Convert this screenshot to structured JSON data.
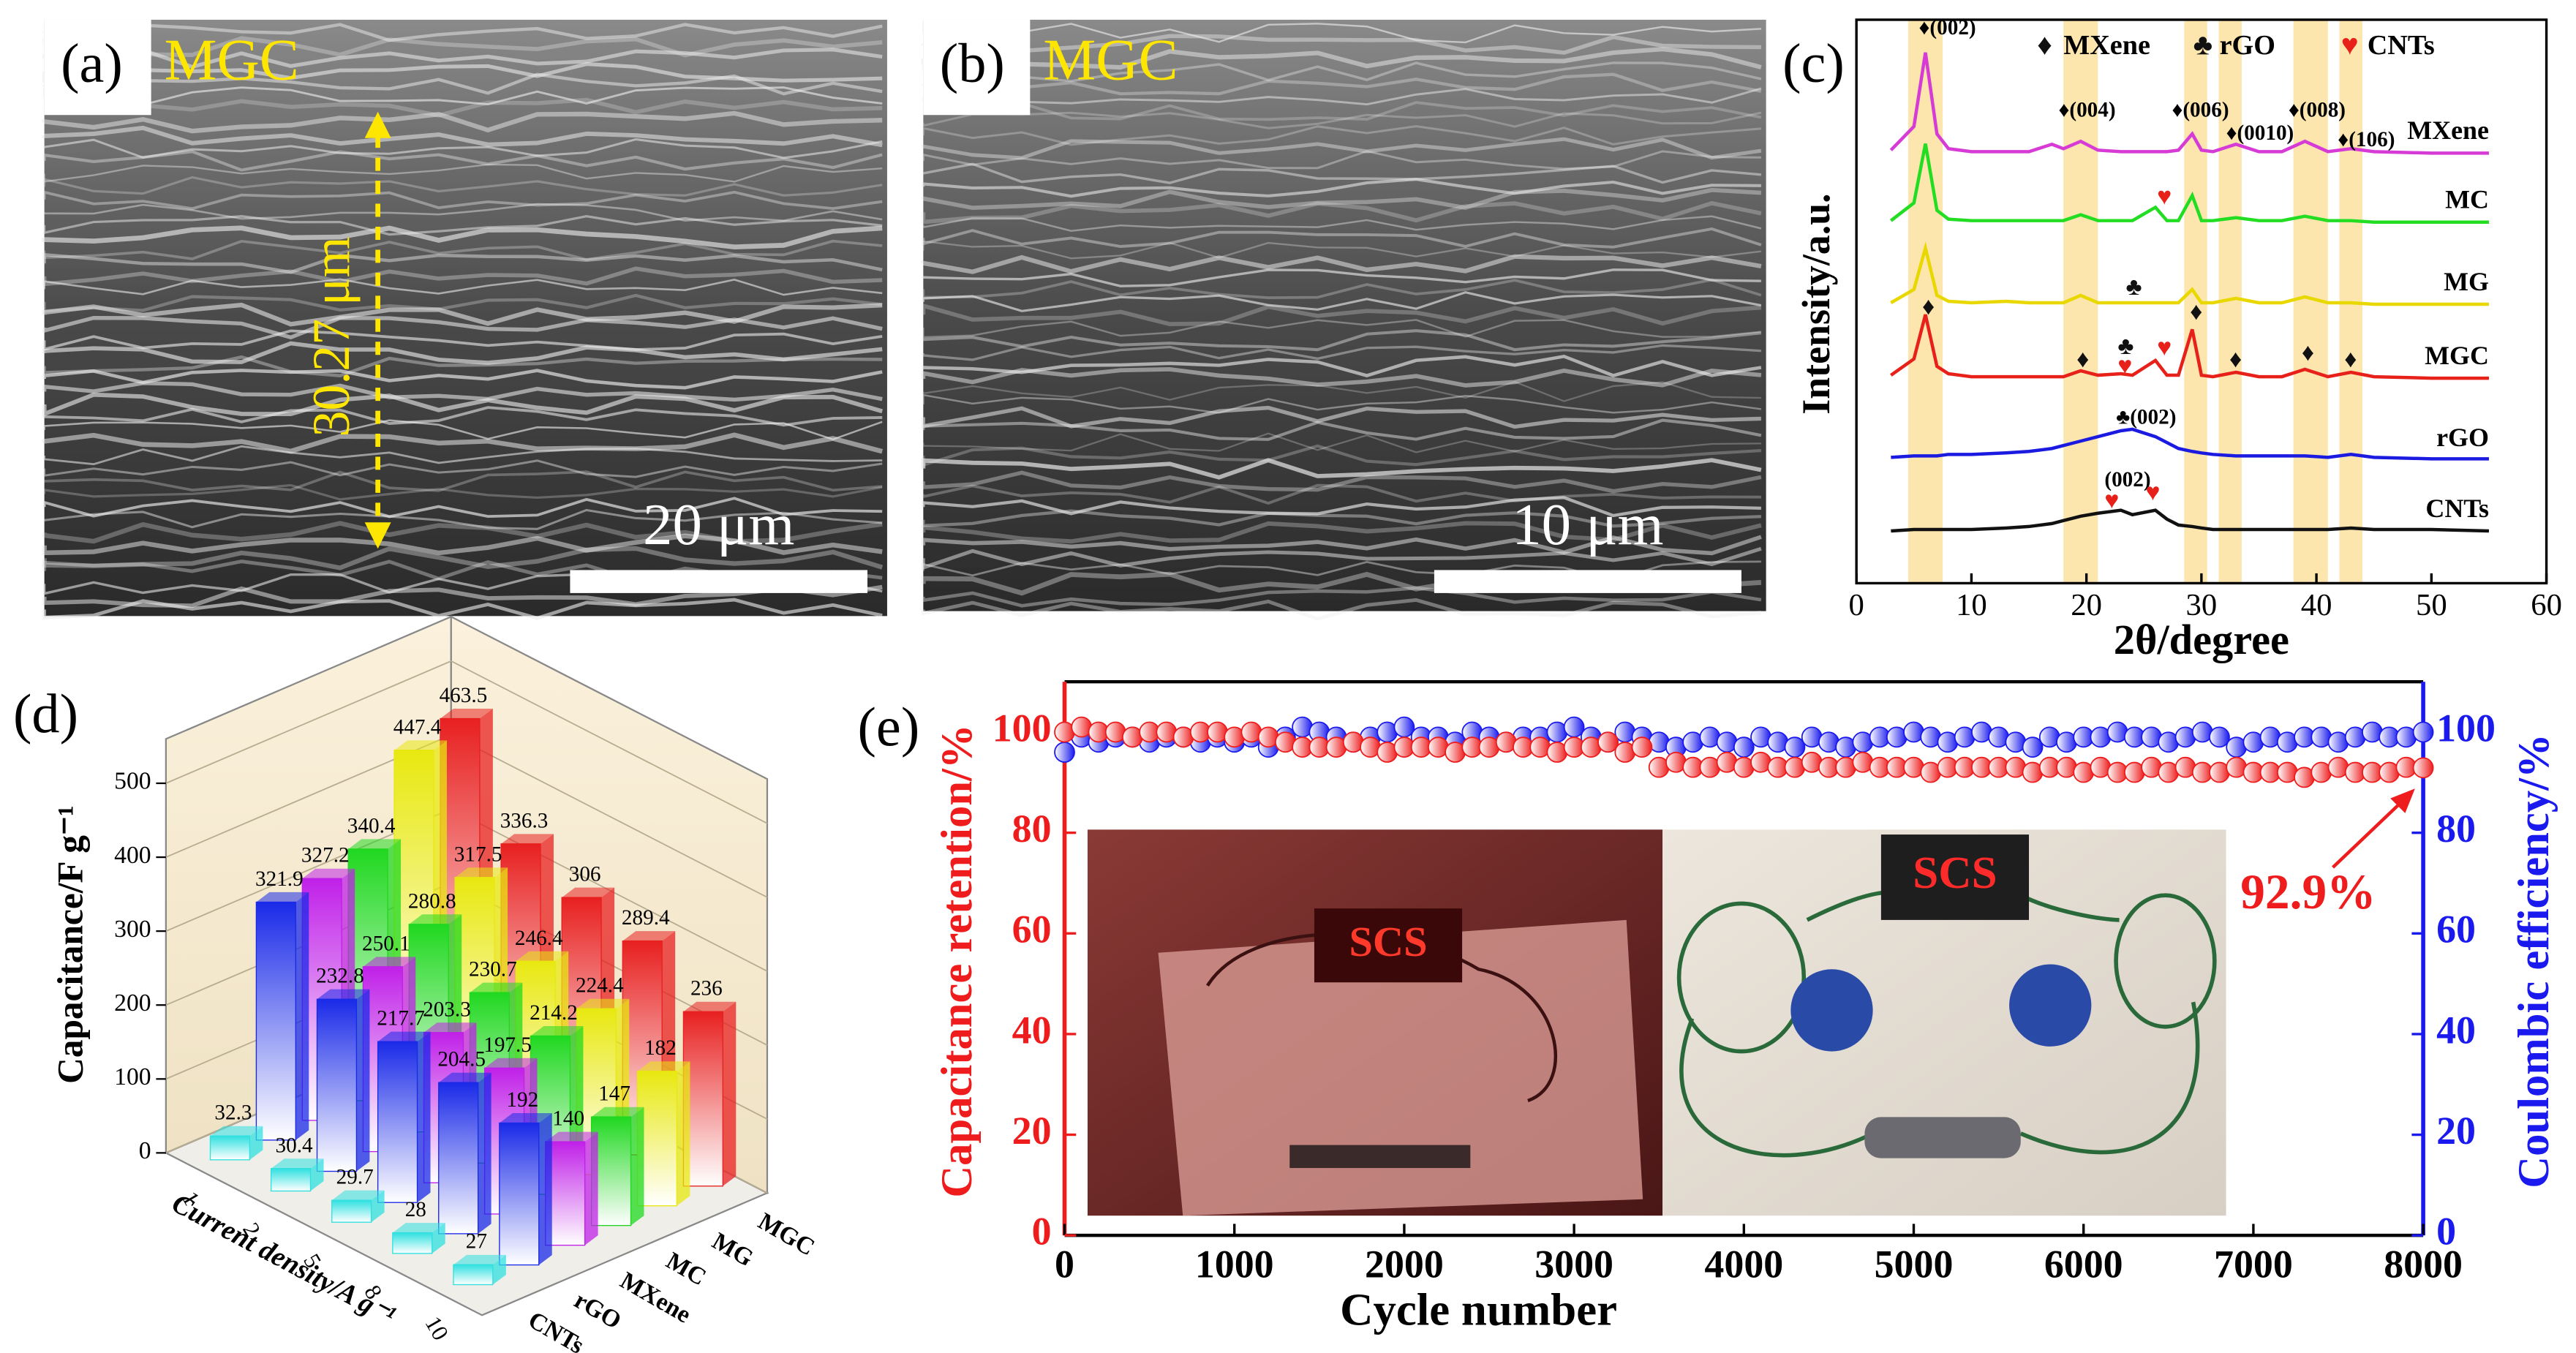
{
  "chart_data": [
    {
      "type": "image",
      "label": "(a)",
      "title": "MGC",
      "annotation": "30.27 μm",
      "scale_bar": "20 μm"
    },
    {
      "type": "image",
      "label": "(b)",
      "title": "MGC",
      "scale_bar": "10 μm"
    },
    {
      "type": "line",
      "label": "(c)",
      "xlabel": "2θ/degree",
      "ylabel": "Intensity/a.u.",
      "x": [
        3,
        5,
        6,
        7,
        8,
        10,
        13,
        15,
        17,
        18,
        19.5,
        21,
        23,
        24,
        26,
        27,
        28,
        29.2,
        30,
        31,
        33,
        35,
        37,
        39,
        41,
        43,
        45,
        50,
        55
      ],
      "xlim": [
        0,
        60
      ],
      "xticks": [
        0,
        10,
        20,
        30,
        40,
        50,
        60
      ],
      "bands": [
        [
          4.5,
          7.5
        ],
        [
          18,
          21
        ],
        [
          28.5,
          30.5
        ],
        [
          31.5,
          33.5
        ],
        [
          38,
          41
        ],
        [
          42,
          44
        ]
      ],
      "series": [
        {
          "name": "MXene",
          "color": "#d63bd6",
          "values": [
            4,
            20,
            70,
            15,
            5,
            3,
            3,
            3,
            8,
            5,
            10,
            4,
            3,
            3,
            3,
            3,
            4,
            15,
            4,
            3,
            8,
            3,
            3,
            10,
            3,
            5,
            3,
            2,
            2
          ]
        },
        {
          "name": "MC",
          "color": "#22dd22",
          "values": [
            3,
            15,
            55,
            10,
            4,
            3,
            3,
            3,
            3,
            3,
            7,
            3,
            3,
            3,
            12,
            3,
            3,
            20,
            3,
            3,
            5,
            3,
            3,
            6,
            3,
            3,
            2,
            2,
            2
          ]
        },
        {
          "name": "MG",
          "color": "#e8d800",
          "values": [
            3,
            12,
            40,
            8,
            4,
            3,
            4,
            3,
            3,
            3,
            8,
            3,
            3,
            3,
            3,
            3,
            3,
            12,
            3,
            3,
            6,
            3,
            3,
            7,
            3,
            3,
            2,
            2,
            2
          ]
        },
        {
          "name": "MGC",
          "color": "#e8201a",
          "values": [
            4,
            15,
            45,
            10,
            5,
            3,
            3,
            3,
            3,
            3,
            7,
            4,
            5,
            4,
            14,
            4,
            4,
            35,
            4,
            3,
            6,
            3,
            3,
            8,
            3,
            6,
            3,
            2,
            2
          ]
        },
        {
          "name": "rGO",
          "color": "#1a1ae0",
          "values": [
            4,
            5,
            5,
            5,
            6,
            6,
            7,
            8,
            10,
            12,
            15,
            18,
            22,
            23,
            18,
            14,
            10,
            8,
            7,
            6,
            5,
            5,
            5,
            5,
            4,
            6,
            4,
            3,
            3
          ]
        },
        {
          "name": "CNTs",
          "color": "#111111",
          "values": [
            2,
            3,
            3,
            3,
            3,
            3,
            4,
            5,
            7,
            9,
            12,
            14,
            16,
            13,
            16,
            10,
            6,
            5,
            4,
            3,
            3,
            3,
            3,
            3,
            3,
            4,
            3,
            3,
            2
          ]
        }
      ],
      "marker_legend": [
        {
          "symbol": "♦",
          "name": "MXene",
          "color": "#111111"
        },
        {
          "symbol": "♣",
          "name": "rGO",
          "color": "#111111"
        },
        {
          "symbol": "♥",
          "name": "CNTs",
          "color": "#e8201a"
        }
      ],
      "annotations": [
        "♦(002)",
        "♦(004)",
        "♦(006)",
        "♦(0010)",
        "♦(008)",
        "♦(106)",
        "♣(002)",
        "(002)"
      ],
      "markers": [
        "♥",
        "♣",
        "♦",
        "♦",
        "♣",
        "♥",
        "♥",
        "♦",
        "♦",
        "♦",
        "♦",
        "♥",
        "♥"
      ]
    },
    {
      "type": "bar3d",
      "label": "(d)",
      "zlabel": "Capacitance/F g⁻¹",
      "xlabel": "Current density/A g⁻¹",
      "categories": [
        "1",
        "2",
        "5",
        "8",
        "10"
      ],
      "zlim": [
        0,
        560
      ],
      "zticks": [
        0,
        100,
        200,
        300,
        400,
        500
      ],
      "series": [
        {
          "name": "CNTs",
          "color": "#30e0e0",
          "values": [
            32.3,
            30.4,
            29.7,
            28,
            27
          ]
        },
        {
          "name": "rGO",
          "color": "#1a2ae8",
          "values": [
            321.9,
            232.8,
            217.7,
            204.5,
            192
          ]
        },
        {
          "name": "MXene",
          "color": "#c020e8",
          "values": [
            327.2,
            250.1,
            203.3,
            197.5,
            140
          ]
        },
        {
          "name": "MC",
          "color": "#20d820",
          "values": [
            340.4,
            280.8,
            230.7,
            214.2,
            147
          ]
        },
        {
          "name": "MG",
          "color": "#e8e810",
          "values": [
            447.4,
            317.5,
            246.4,
            224.4,
            182
          ]
        },
        {
          "name": "MGC",
          "color": "#e82020",
          "values": [
            463.5,
            336.3,
            306,
            289.4,
            236
          ]
        }
      ]
    },
    {
      "type": "scatter",
      "label": "(e)",
      "xlabel": "Cycle number",
      "ylabel": "Capacitance retention/%",
      "y2label": "Coulombic efficiency/%",
      "x": [
        0,
        100,
        200,
        300,
        400,
        500,
        600,
        700,
        800,
        900,
        1000,
        1100,
        1200,
        1300,
        1400,
        1500,
        1600,
        1700,
        1800,
        1900,
        2000,
        2100,
        2200,
        2300,
        2400,
        2500,
        2600,
        2700,
        2800,
        2900,
        3000,
        3100,
        3200,
        3300,
        3400,
        3500,
        3600,
        3700,
        3800,
        3900,
        4000,
        4100,
        4200,
        4300,
        4400,
        4500,
        4600,
        4700,
        4800,
        4900,
        5000,
        5100,
        5200,
        5300,
        5400,
        5500,
        5600,
        5700,
        5800,
        5900,
        6000,
        6100,
        6200,
        6300,
        6400,
        6500,
        6600,
        6700,
        6800,
        6900,
        7000,
        7100,
        7200,
        7300,
        7400,
        7500,
        7600,
        7700,
        7800,
        7900,
        8000
      ],
      "xlim": [
        0,
        8000
      ],
      "xticks": [
        0,
        1000,
        2000,
        3000,
        4000,
        5000,
        6000,
        7000,
        8000
      ],
      "ylim": [
        0,
        110
      ],
      "yticks": [
        0,
        20,
        40,
        60,
        80,
        100
      ],
      "y2lim": [
        0,
        110
      ],
      "y2ticks": [
        0,
        20,
        40,
        60,
        80,
        100
      ],
      "series": [
        {
          "name": "Capacitance retention",
          "color": "#ee1c1c",
          "values": [
            100,
            101,
            100,
            100,
            99,
            100,
            100,
            99,
            100,
            100,
            99,
            100,
            99,
            98,
            97,
            97,
            97,
            98,
            97,
            96,
            97,
            97,
            97,
            96,
            97,
            97,
            98,
            97,
            97,
            96,
            97,
            97,
            98,
            96,
            97,
            93,
            94,
            93,
            93,
            94,
            93,
            94,
            93,
            93,
            94,
            93,
            93,
            94,
            93,
            93,
            93,
            92,
            93,
            93,
            93,
            93,
            93,
            92,
            93,
            93,
            92,
            93,
            92,
            92,
            93,
            92,
            93,
            92,
            92,
            93,
            92,
            92,
            92,
            91,
            92,
            93,
            92,
            92,
            92,
            93,
            92.9
          ]
        },
        {
          "name": "Coulombic efficiency",
          "color": "#1a1aee",
          "axis": "y2",
          "values": [
            96,
            99,
            98,
            99,
            99,
            98,
            99,
            99,
            98,
            99,
            98,
            99,
            97,
            99,
            101,
            100,
            99,
            98,
            99,
            100,
            101,
            99,
            99,
            98,
            100,
            99,
            98,
            99,
            99,
            100,
            101,
            99,
            98,
            100,
            99,
            98,
            97,
            98,
            99,
            98,
            97,
            99,
            98,
            97,
            99,
            98,
            97,
            98,
            99,
            99,
            100,
            99,
            98,
            99,
            100,
            99,
            98,
            97,
            99,
            98,
            99,
            99,
            100,
            99,
            99,
            98,
            99,
            100,
            99,
            97,
            98,
            99,
            98,
            99,
            99,
            98,
            99,
            100,
            99,
            99,
            100
          ]
        }
      ],
      "annotation": "92.9%",
      "photo_text": "SCS"
    }
  ]
}
